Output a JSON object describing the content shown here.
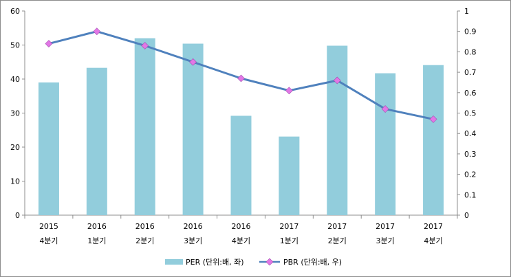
{
  "chart_data": {
    "type": "bar",
    "title": "",
    "xlabel": "",
    "categories": [
      [
        "2015",
        "4분기"
      ],
      [
        "2016",
        "1분기"
      ],
      [
        "2016",
        "2분기"
      ],
      [
        "2016",
        "3분기"
      ],
      [
        "2016",
        "4분기"
      ],
      [
        "2017",
        "1분기"
      ],
      [
        "2017",
        "2분기"
      ],
      [
        "2017",
        "3분기"
      ],
      [
        "2017",
        "4분기"
      ]
    ],
    "series": [
      {
        "name": "PER (단위:배, 좌)",
        "type": "bar",
        "axis": "left",
        "color": "#92cddc",
        "values": [
          39,
          43.3,
          52,
          50.4,
          29.2,
          23.1,
          49.8,
          41.7,
          44.1
        ]
      },
      {
        "name": "PBR (단위:배, 우)",
        "type": "line",
        "axis": "right",
        "color": "#4f81bd",
        "marker_color": "#e277e6",
        "values": [
          0.84,
          0.9,
          0.83,
          0.75,
          0.67,
          0.61,
          0.66,
          0.52,
          0.47
        ]
      }
    ],
    "y_left": {
      "ylim": [
        0,
        60
      ],
      "ticks": [
        "0",
        "10",
        "20",
        "30",
        "40",
        "50",
        "60"
      ]
    },
    "y_right": {
      "ylim": [
        0,
        1
      ],
      "ticks": [
        "0",
        "0.1",
        "0.2",
        "0.3",
        "0.4",
        "0.5",
        "0.6",
        "0.7",
        "0.8",
        "0.9",
        "1"
      ]
    },
    "grid": false,
    "legend_position": "bottom"
  }
}
